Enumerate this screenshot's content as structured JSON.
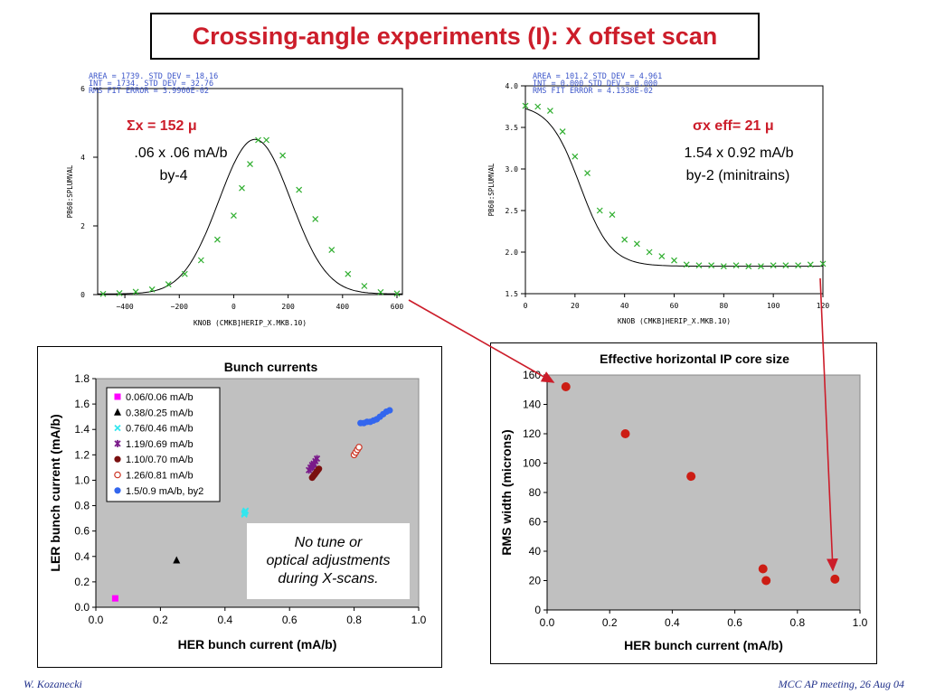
{
  "slide": {
    "title": "Crossing-angle experiments (I): X offset scan",
    "footer_left": "W. Kozanecki",
    "footer_right": "MCC AP meeting, 26 Aug 04",
    "accent_color": "#cc1d2a"
  },
  "scan_left": {
    "header_lines": [
      "AREA =      1739.      STD DEV =      18.16",
      "INT  =      1734.      STD DEV =      32.76",
      "RMS FIT ERROR  =    3.9900E-02"
    ],
    "ylabel": "PB60:SPLUMVAL",
    "xlabel": "KNOB (CMKB]HERIP_X.MKB.10)",
    "sigma_label": "Σx = 152 μ",
    "note1": ".06 x .06 mA/b",
    "note2": "by-4"
  },
  "scan_right": {
    "header_lines": [
      "AREA =      101.2      STD DEV =      4.961",
      "INT  =      0.000      STD DEV =      0.000",
      "RMS FIT ERROR  =    4.1338E-02"
    ],
    "ylabel": "PB60:SPLUMVAL",
    "xlabel": "KNOB (CMKB]HERIP_X.MKB.10)",
    "sigma_label": "σx eff= 21 μ",
    "note1": "1.54 x 0.92 mA/b",
    "note2": "by-2 (minitrains)"
  },
  "bunch_panel": {
    "note_lines": [
      "No tune or",
      "optical adjustments",
      "during X-scans."
    ]
  },
  "chart_data": [
    {
      "type": "scatter",
      "title": "",
      "xlabel": "KNOB (CMKB]HERIP_X.MKB.10)",
      "ylabel": "PB60:SPLUMVAL",
      "xlim": [
        -500,
        620
      ],
      "ylim": [
        0,
        6
      ],
      "xticks": [
        -400,
        -200,
        0,
        200,
        400,
        600
      ],
      "yticks": [
        0,
        2,
        4,
        6
      ],
      "marker_color": "#2fae2f",
      "x": [
        -480,
        -420,
        -360,
        -300,
        -240,
        -180,
        -120,
        -60,
        0,
        30,
        60,
        90,
        120,
        180,
        240,
        300,
        360,
        420,
        480,
        540,
        600
      ],
      "y": [
        0.02,
        0.04,
        0.08,
        0.15,
        0.3,
        0.6,
        1.0,
        1.6,
        2.3,
        3.1,
        3.8,
        4.5,
        4.5,
        4.05,
        3.05,
        2.2,
        1.3,
        0.6,
        0.25,
        0.07,
        0.03
      ]
    },
    {
      "type": "scatter",
      "title": "",
      "xlabel": "KNOB (CMKB]HERIP_X.MKB.10)",
      "ylabel": "PB60:SPLUMVAL",
      "xlim": [
        0,
        120
      ],
      "ylim": [
        1.5,
        4.0
      ],
      "xticks": [
        0,
        20,
        40,
        60,
        80,
        100,
        120
      ],
      "yticks": [
        1.5,
        2.0,
        2.5,
        3.0,
        3.5,
        4.0
      ],
      "marker_color": "#2fae2f",
      "x": [
        0,
        5,
        10,
        15,
        20,
        25,
        30,
        35,
        40,
        45,
        50,
        55,
        60,
        65,
        70,
        75,
        80,
        85,
        90,
        95,
        100,
        105,
        110,
        115,
        120
      ],
      "y": [
        3.76,
        3.75,
        3.7,
        3.45,
        3.15,
        2.95,
        2.5,
        2.45,
        2.15,
        2.1,
        2.0,
        1.95,
        1.9,
        1.85,
        1.84,
        1.84,
        1.83,
        1.84,
        1.83,
        1.83,
        1.84,
        1.84,
        1.84,
        1.85,
        1.86
      ]
    },
    {
      "type": "scatter",
      "title": "Bunch currents",
      "xlabel": "HER bunch current (mA/b)",
      "ylabel": "LER bunch current (mA/b)",
      "xlim": [
        0,
        1.0
      ],
      "ylim": [
        0,
        1.8
      ],
      "xticks": [
        "0.0",
        "0.2",
        "0.4",
        "0.6",
        "0.8",
        "1.0"
      ],
      "yticks": [
        "0.0",
        "0.2",
        "0.4",
        "0.6",
        "0.8",
        "1.0",
        "1.2",
        "1.4",
        "1.6",
        "1.8"
      ],
      "legend_position": "top-left",
      "plot_background": "#c0c0c0",
      "series": [
        {
          "name": "0.06/0.06 mA/b",
          "marker": "square",
          "color": "#ff00ff",
          "points": [
            [
              0.06,
              0.07
            ]
          ]
        },
        {
          "name": "0.38/0.25 mA/b",
          "marker": "triangle",
          "color": "#000000",
          "points": [
            [
              0.25,
              0.37
            ]
          ]
        },
        {
          "name": "0.76/0.46 mA/b",
          "marker": "x",
          "color": "#33e6ee",
          "points": [
            [
              0.46,
              0.73
            ],
            [
              0.462,
              0.75
            ],
            [
              0.464,
              0.76
            ],
            [
              0.46,
              0.74
            ]
          ]
        },
        {
          "name": "1.19/0.69 mA/b",
          "marker": "star",
          "color": "#7a1a8a",
          "points": [
            [
              0.66,
              1.08
            ],
            [
              0.665,
              1.1
            ],
            [
              0.67,
              1.12
            ],
            [
              0.675,
              1.13
            ],
            [
              0.68,
              1.15
            ],
            [
              0.685,
              1.17
            ],
            [
              0.67,
              1.1
            ],
            [
              0.675,
              1.12
            ]
          ]
        },
        {
          "name": "1.10/0.70 mA/b",
          "marker": "dot",
          "color": "#7a1010",
          "points": [
            [
              0.67,
              1.02
            ],
            [
              0.673,
              1.03
            ],
            [
              0.676,
              1.04
            ],
            [
              0.679,
              1.05
            ],
            [
              0.682,
              1.06
            ],
            [
              0.685,
              1.07
            ],
            [
              0.688,
              1.08
            ],
            [
              0.691,
              1.09
            ]
          ]
        },
        {
          "name": "1.26/0.81 mA/b",
          "marker": "circle",
          "color": "#cc3322",
          "points": [
            [
              0.8,
              1.2
            ],
            [
              0.805,
              1.22
            ],
            [
              0.81,
              1.24
            ],
            [
              0.815,
              1.26
            ]
          ]
        },
        {
          "name": "1.5/0.9 mA/b, by2",
          "marker": "dot",
          "color": "#3366ee",
          "points": [
            [
              0.82,
              1.45
            ],
            [
              0.83,
              1.45
            ],
            [
              0.84,
              1.46
            ],
            [
              0.85,
              1.46
            ],
            [
              0.86,
              1.47
            ],
            [
              0.87,
              1.48
            ],
            [
              0.88,
              1.5
            ],
            [
              0.89,
              1.52
            ],
            [
              0.9,
              1.54
            ],
            [
              0.91,
              1.55
            ]
          ]
        }
      ]
    },
    {
      "type": "scatter",
      "title": "Effective horizontal IP core size",
      "xlabel": "HER bunch current (mA/b)",
      "ylabel": "RMS width (microns)",
      "xlim": [
        0,
        1.0
      ],
      "ylim": [
        0,
        160
      ],
      "xticks": [
        "0.0",
        "0.2",
        "0.4",
        "0.6",
        "0.8",
        "1.0"
      ],
      "yticks": [
        "0",
        "20",
        "40",
        "60",
        "80",
        "100",
        "120",
        "140",
        "160"
      ],
      "plot_background": "#c0c0c0",
      "marker_color": "#cc1d14",
      "x": [
        0.06,
        0.25,
        0.46,
        0.69,
        0.7,
        0.92
      ],
      "y": [
        152,
        120,
        91,
        28,
        20,
        21
      ]
    }
  ]
}
